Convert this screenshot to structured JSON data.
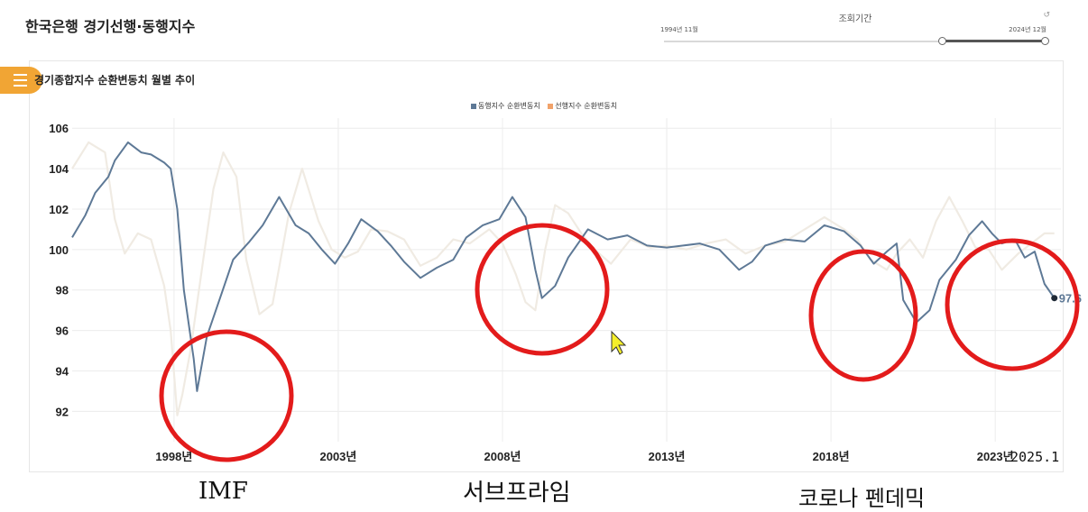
{
  "header": {
    "title": "한국은행 경기선행·동행지수",
    "period_label": "조회기간",
    "period_start": "1994년 11월",
    "period_end": "2024년 12월",
    "reset_icon": "reset-icon"
  },
  "menu_icon": "list-icon",
  "chart_data": {
    "type": "line",
    "title": "경기종합지수 순환변동치 월별 추이",
    "legend_position": "top-center",
    "grid": true,
    "xlim": [
      1994.9,
      2025.0
    ],
    "ylim": [
      90.5,
      106.5
    ],
    "yticks": [
      92,
      94,
      96,
      98,
      100,
      102,
      104,
      106
    ],
    "xticks": [
      {
        "x": 1998,
        "label": "1998년"
      },
      {
        "x": 2003,
        "label": "2003년"
      },
      {
        "x": 2008,
        "label": "2008년"
      },
      {
        "x": 2013,
        "label": "2013년"
      },
      {
        "x": 2018,
        "label": "2018년"
      },
      {
        "x": 2023,
        "label": "2023년"
      }
    ],
    "series": [
      {
        "name": "동행지수 순환변동치",
        "color": "#5e7996",
        "x": [
          1994.9,
          1995.3,
          1995.6,
          1996.0,
          1996.2,
          1996.6,
          1997.0,
          1997.3,
          1997.7,
          1997.9,
          1998.1,
          1998.3,
          1998.6,
          1998.7,
          1999.0,
          1999.4,
          1999.8,
          2000.3,
          2000.7,
          2001.2,
          2001.7,
          2002.1,
          2002.5,
          2002.9,
          2003.3,
          2003.7,
          2004.2,
          2004.6,
          2005.0,
          2005.5,
          2006.0,
          2006.5,
          2006.9,
          2007.4,
          2007.9,
          2008.3,
          2008.7,
          2009.0,
          2009.2,
          2009.6,
          2010.0,
          2010.6,
          2011.2,
          2011.8,
          2012.4,
          2013.0,
          2013.5,
          2014.0,
          2014.6,
          2015.2,
          2015.6,
          2016.0,
          2016.6,
          2017.2,
          2017.8,
          2018.4,
          2018.9,
          2019.3,
          2019.7,
          2020.0,
          2020.2,
          2020.6,
          2021.0,
          2021.3,
          2021.8,
          2022.2,
          2022.6,
          2022.9,
          2023.2,
          2023.6,
          2023.9,
          2024.2,
          2024.5,
          2024.8
        ],
        "values": [
          100.6,
          101.7,
          102.8,
          103.6,
          104.4,
          105.3,
          104.8,
          104.7,
          104.3,
          104.0,
          102.0,
          98.0,
          94.6,
          93.0,
          95.7,
          97.6,
          99.5,
          100.4,
          101.2,
          102.6,
          101.2,
          100.8,
          100.0,
          99.3,
          100.3,
          101.5,
          100.9,
          100.2,
          99.4,
          98.6,
          99.1,
          99.5,
          100.6,
          101.2,
          101.5,
          102.6,
          101.6,
          99.0,
          97.6,
          98.2,
          99.6,
          101.0,
          100.5,
          100.7,
          100.2,
          100.1,
          100.2,
          100.3,
          100.0,
          99.0,
          99.4,
          100.2,
          100.5,
          100.4,
          101.2,
          100.9,
          100.2,
          99.3,
          99.9,
          100.3,
          97.5,
          96.4,
          97.0,
          98.5,
          99.5,
          100.7,
          101.4,
          100.8,
          100.3,
          100.5,
          99.6,
          99.9,
          98.3,
          97.6
        ]
      },
      {
        "name": "선행지수 순환변동치",
        "color": "#f0ebe3",
        "x": [
          1994.9,
          1995.4,
          1995.9,
          1996.2,
          1996.5,
          1996.9,
          1997.3,
          1997.7,
          1997.9,
          1998.1,
          1998.25,
          1998.5,
          1998.9,
          1999.2,
          1999.5,
          1999.9,
          2000.2,
          2000.6,
          2001.0,
          2001.5,
          2001.9,
          2002.4,
          2002.8,
          2003.2,
          2003.6,
          2004.0,
          2004.5,
          2005.0,
          2005.5,
          2006.0,
          2006.5,
          2007.0,
          2007.6,
          2008.0,
          2008.4,
          2008.7,
          2009.0,
          2009.3,
          2009.6,
          2010.0,
          2010.4,
          2010.8,
          2011.3,
          2011.9,
          2012.5,
          2013.0,
          2013.6,
          2014.2,
          2014.8,
          2015.4,
          2016.0,
          2016.6,
          2017.2,
          2017.8,
          2018.4,
          2018.8,
          2019.2,
          2019.7,
          2020.0,
          2020.4,
          2020.8,
          2021.2,
          2021.6,
          2022.0,
          2022.4,
          2022.8,
          2023.2,
          2023.7,
          2024.1,
          2024.5,
          2024.8
        ],
        "values": [
          104.0,
          105.3,
          104.8,
          101.5,
          99.8,
          100.8,
          100.5,
          98.2,
          96.0,
          91.8,
          92.8,
          95.0,
          99.6,
          103.0,
          104.8,
          103.6,
          99.5,
          96.8,
          97.3,
          101.8,
          104.0,
          101.4,
          100.0,
          99.6,
          99.9,
          101.0,
          100.9,
          100.5,
          99.2,
          99.6,
          100.5,
          100.3,
          101.0,
          100.3,
          98.8,
          97.4,
          97.0,
          100.0,
          102.2,
          101.8,
          100.8,
          100.0,
          99.3,
          100.5,
          100.1,
          100.2,
          100.0,
          100.3,
          100.5,
          99.8,
          100.2,
          100.4,
          101.0,
          101.6,
          101.0,
          100.5,
          99.5,
          99.0,
          99.8,
          100.5,
          99.6,
          101.4,
          102.6,
          101.4,
          100.1,
          100.0,
          99.0,
          99.8,
          100.3,
          100.8,
          100.8
        ]
      }
    ],
    "end_label": {
      "series": 0,
      "text": "97.6"
    }
  },
  "annotations": {
    "date_label": "2025.1",
    "captions": [
      "IMF",
      "서브프라임",
      "코로나 펜데믹"
    ]
  }
}
